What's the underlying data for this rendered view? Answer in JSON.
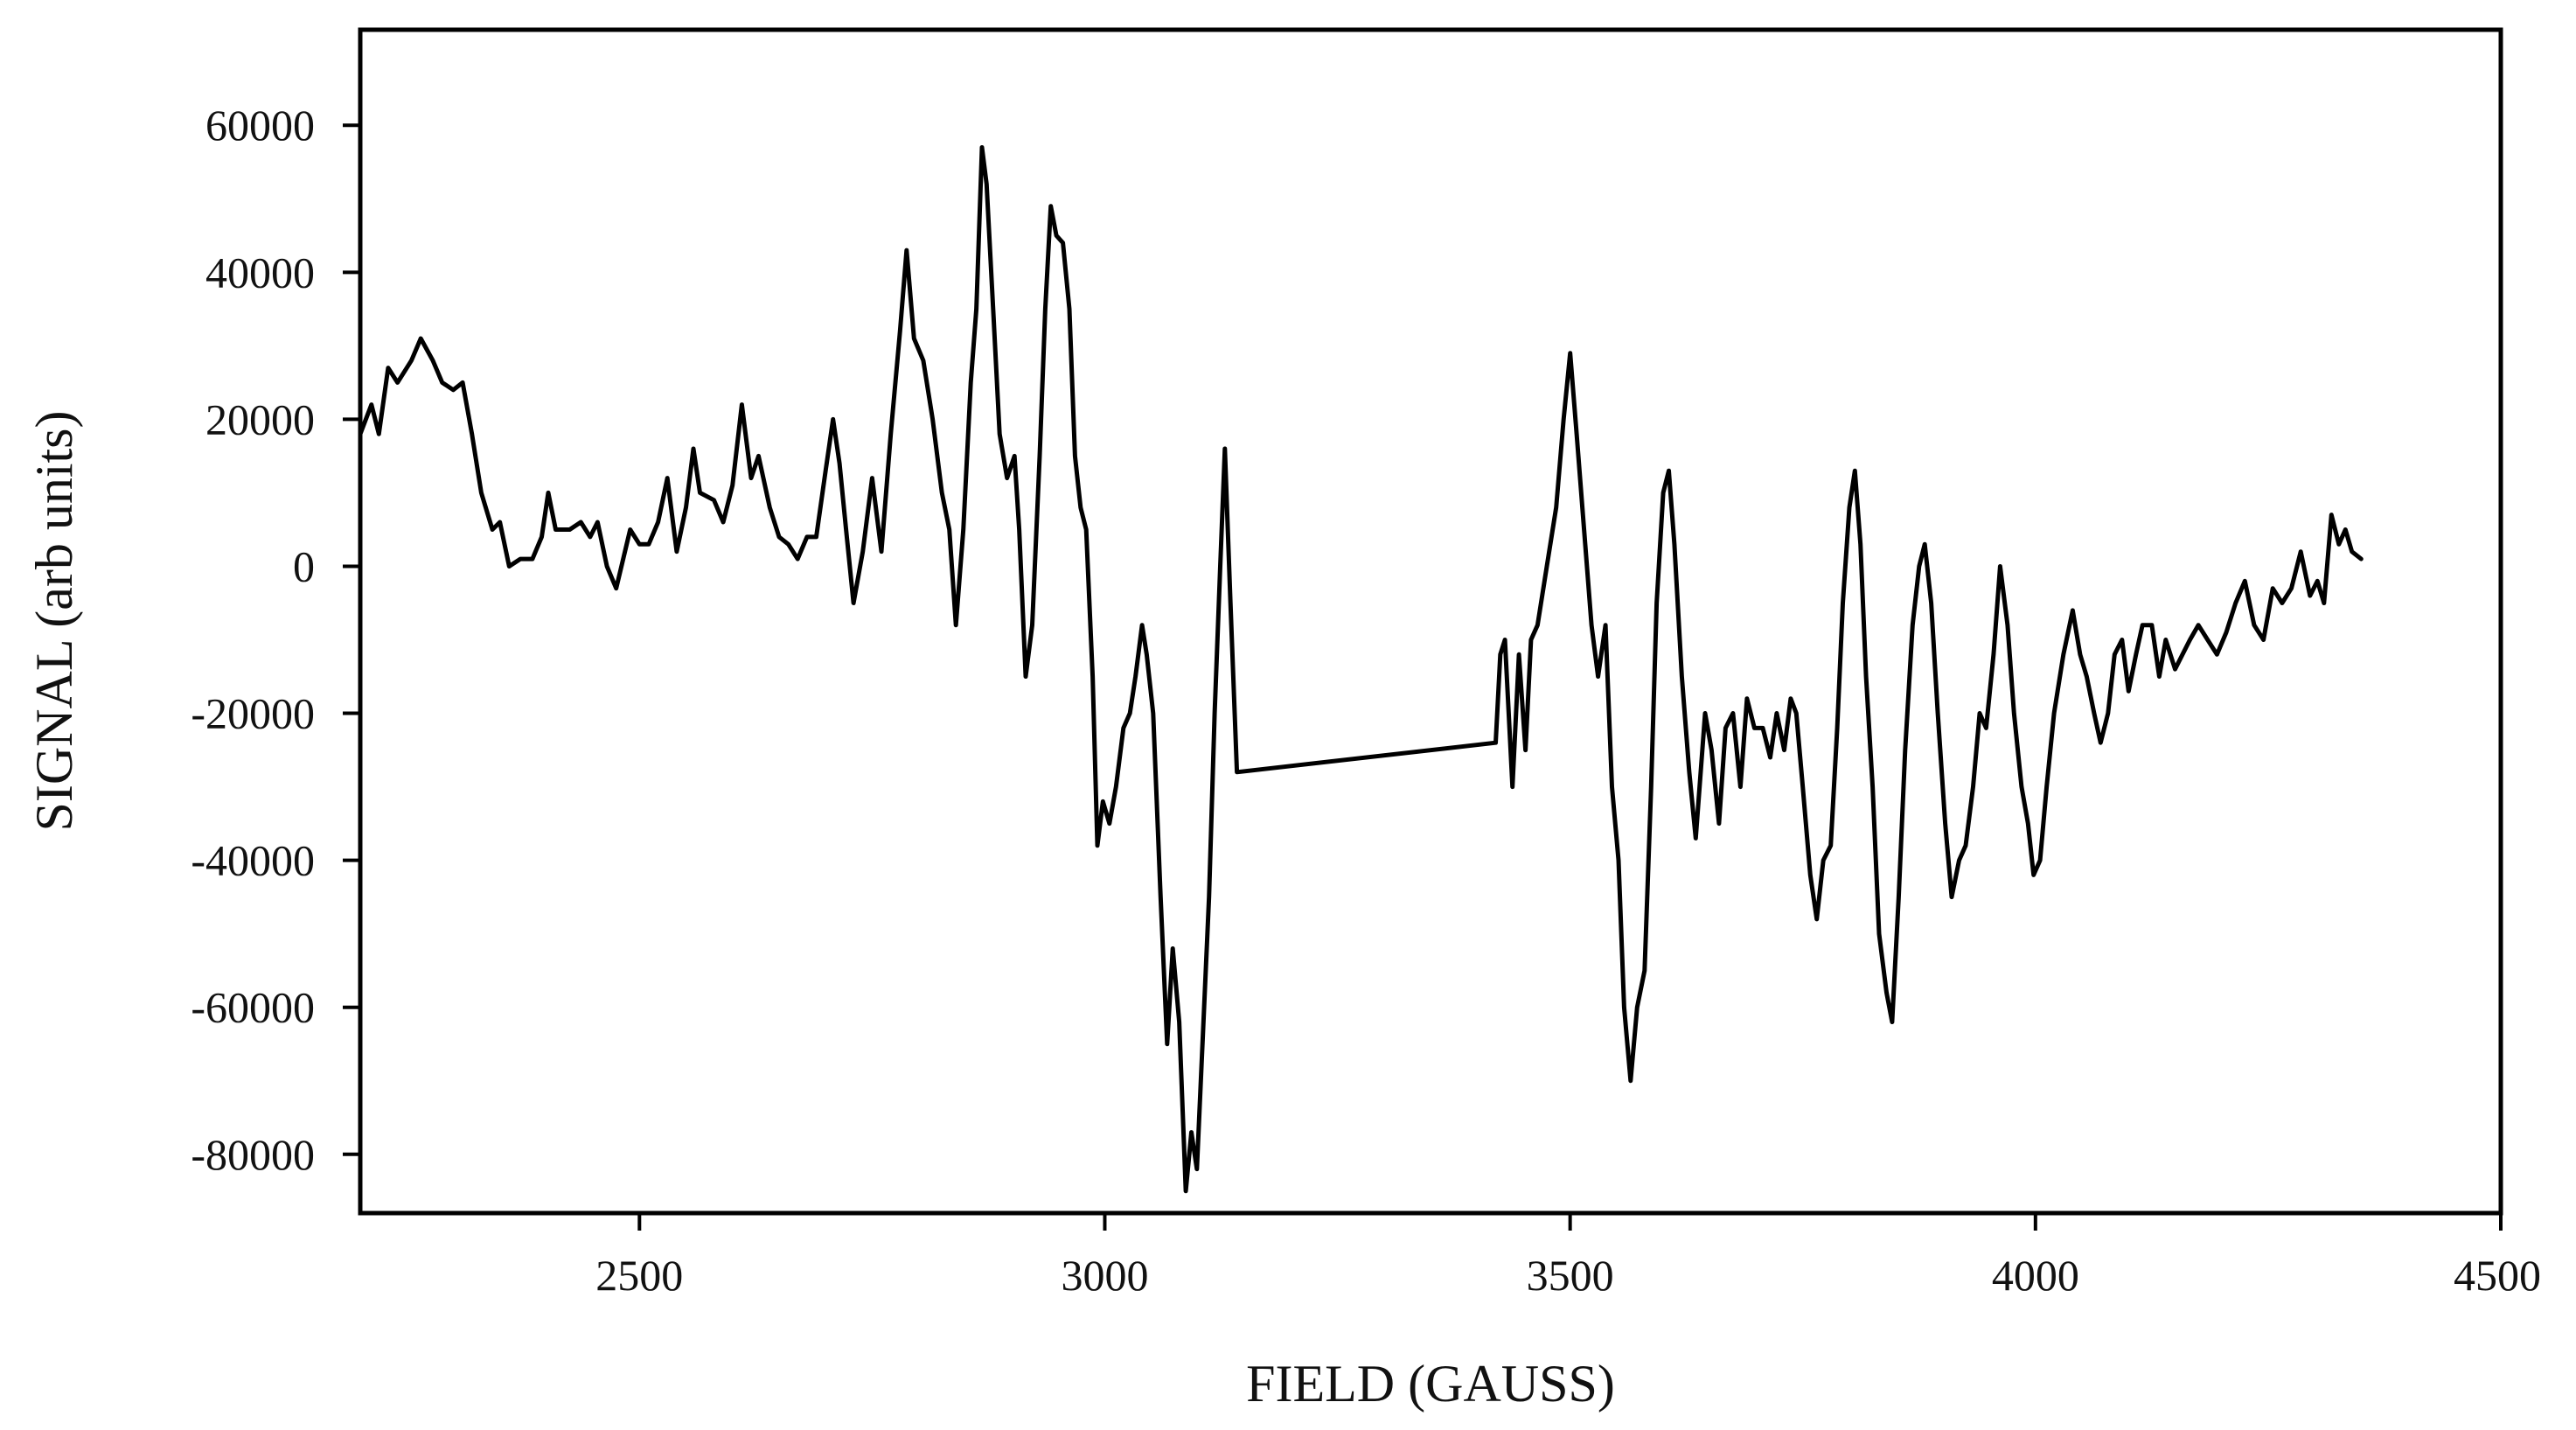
{
  "chart_data": {
    "type": "line",
    "title": "",
    "xlabel": "FIELD (GAUSS)",
    "ylabel": "SIGNAL (arb units)",
    "xlim": [
      2200,
      4500
    ],
    "ylim": [
      -88000,
      73000
    ],
    "x_ticks": [
      2500,
      3000,
      3500,
      4000,
      4500
    ],
    "y_ticks": [
      60000,
      40000,
      20000,
      0,
      -20000,
      -40000,
      -60000,
      -80000
    ],
    "x_tick_labels": [
      "2500",
      "3000",
      "3500",
      "4000",
      "4500"
    ],
    "y_tick_labels": [
      "60000",
      "40000",
      "20000",
      "0",
      "-20000",
      "-40000",
      "-60000",
      "-80000"
    ],
    "grid": false,
    "legend": "none",
    "series": [
      {
        "name": "signal",
        "color": "#000000",
        "points": [
          [
            2200,
            18000
          ],
          [
            2212,
            22000
          ],
          [
            2220,
            18000
          ],
          [
            2230,
            27000
          ],
          [
            2240,
            25000
          ],
          [
            2255,
            28000
          ],
          [
            2265,
            31000
          ],
          [
            2278,
            28000
          ],
          [
            2288,
            25000
          ],
          [
            2300,
            24000
          ],
          [
            2310,
            25000
          ],
          [
            2320,
            18000
          ],
          [
            2330,
            10000
          ],
          [
            2342,
            5000
          ],
          [
            2350,
            6000
          ],
          [
            2360,
            0
          ],
          [
            2372,
            1000
          ],
          [
            2385,
            1000
          ],
          [
            2395,
            4000
          ],
          [
            2402,
            10000
          ],
          [
            2410,
            5000
          ],
          [
            2425,
            5000
          ],
          [
            2437,
            6000
          ],
          [
            2447,
            4000
          ],
          [
            2455,
            6000
          ],
          [
            2465,
            0
          ],
          [
            2475,
            -3000
          ],
          [
            2490,
            5000
          ],
          [
            2500,
            3000
          ],
          [
            2510,
            3000
          ],
          [
            2520,
            6000
          ],
          [
            2530,
            12000
          ],
          [
            2540,
            2000
          ],
          [
            2550,
            8000
          ],
          [
            2558,
            16000
          ],
          [
            2565,
            10000
          ],
          [
            2580,
            9000
          ],
          [
            2590,
            6000
          ],
          [
            2600,
            11000
          ],
          [
            2610,
            22000
          ],
          [
            2620,
            12000
          ],
          [
            2628,
            15000
          ],
          [
            2640,
            8000
          ],
          [
            2650,
            4000
          ],
          [
            2660,
            3000
          ],
          [
            2670,
            1000
          ],
          [
            2680,
            4000
          ],
          [
            2690,
            4000
          ],
          [
            2700,
            13000
          ],
          [
            2708,
            20000
          ],
          [
            2715,
            14000
          ],
          [
            2722,
            5000
          ],
          [
            2730,
            -5000
          ],
          [
            2740,
            2000
          ],
          [
            2750,
            12000
          ],
          [
            2760,
            2000
          ],
          [
            2770,
            18000
          ],
          [
            2780,
            32000
          ],
          [
            2787,
            43000
          ],
          [
            2795,
            31000
          ],
          [
            2805,
            28000
          ],
          [
            2815,
            20000
          ],
          [
            2825,
            10000
          ],
          [
            2833,
            5000
          ],
          [
            2840,
            -8000
          ],
          [
            2848,
            5000
          ],
          [
            2856,
            25000
          ],
          [
            2862,
            35000
          ],
          [
            2868,
            57000
          ],
          [
            2873,
            52000
          ],
          [
            2880,
            35000
          ],
          [
            2887,
            18000
          ],
          [
            2895,
            12000
          ],
          [
            2903,
            15000
          ],
          [
            2908,
            5000
          ],
          [
            2915,
            -15000
          ],
          [
            2922,
            -8000
          ],
          [
            2930,
            15000
          ],
          [
            2936,
            35000
          ],
          [
            2942,
            49000
          ],
          [
            2948,
            45000
          ],
          [
            2955,
            44000
          ],
          [
            2962,
            35000
          ],
          [
            2968,
            15000
          ],
          [
            2974,
            8000
          ],
          [
            2980,
            5000
          ],
          [
            2987,
            -15000
          ],
          [
            2992,
            -38000
          ],
          [
            2998,
            -32000
          ],
          [
            3005,
            -35000
          ],
          [
            3012,
            -30000
          ],
          [
            3020,
            -22000
          ],
          [
            3027,
            -20000
          ],
          [
            3033,
            -15000
          ],
          [
            3040,
            -8000
          ],
          [
            3045,
            -12000
          ],
          [
            3052,
            -20000
          ],
          [
            3060,
            -45000
          ],
          [
            3067,
            -65000
          ],
          [
            3073,
            -52000
          ],
          [
            3080,
            -62000
          ],
          [
            3087,
            -85000
          ],
          [
            3093,
            -77000
          ],
          [
            3099,
            -82000
          ],
          [
            3105,
            -65000
          ],
          [
            3112,
            -45000
          ],
          [
            3118,
            -20000
          ],
          [
            3124,
            0
          ],
          [
            3129,
            16000
          ],
          [
            3135,
            -5000
          ],
          [
            3142,
            -28000
          ],
          [
            3420,
            -24000
          ],
          [
            3425,
            -12000
          ],
          [
            3430,
            -10000
          ],
          [
            3438,
            -30000
          ],
          [
            3445,
            -12000
          ],
          [
            3452,
            -25000
          ],
          [
            3458,
            -10000
          ],
          [
            3465,
            -8000
          ],
          [
            3475,
            0
          ],
          [
            3485,
            8000
          ],
          [
            3493,
            20000
          ],
          [
            3500,
            29000
          ],
          [
            3507,
            18000
          ],
          [
            3515,
            5000
          ],
          [
            3523,
            -8000
          ],
          [
            3530,
            -15000
          ],
          [
            3538,
            -8000
          ],
          [
            3545,
            -30000
          ],
          [
            3552,
            -40000
          ],
          [
            3558,
            -60000
          ],
          [
            3565,
            -70000
          ],
          [
            3572,
            -60000
          ],
          [
            3580,
            -55000
          ],
          [
            3587,
            -30000
          ],
          [
            3593,
            -5000
          ],
          [
            3600,
            10000
          ],
          [
            3606,
            13000
          ],
          [
            3612,
            3000
          ],
          [
            3620,
            -15000
          ],
          [
            3628,
            -28000
          ],
          [
            3635,
            -37000
          ],
          [
            3645,
            -20000
          ],
          [
            3652,
            -25000
          ],
          [
            3660,
            -35000
          ],
          [
            3667,
            -22000
          ],
          [
            3675,
            -20000
          ],
          [
            3683,
            -30000
          ],
          [
            3690,
            -18000
          ],
          [
            3698,
            -22000
          ],
          [
            3707,
            -22000
          ],
          [
            3715,
            -26000
          ],
          [
            3722,
            -20000
          ],
          [
            3730,
            -25000
          ],
          [
            3737,
            -18000
          ],
          [
            3743,
            -20000
          ],
          [
            3750,
            -30000
          ],
          [
            3758,
            -42000
          ],
          [
            3765,
            -48000
          ],
          [
            3772,
            -40000
          ],
          [
            3780,
            -38000
          ],
          [
            3787,
            -22000
          ],
          [
            3793,
            -5000
          ],
          [
            3800,
            8000
          ],
          [
            3806,
            13000
          ],
          [
            3812,
            3000
          ],
          [
            3818,
            -15000
          ],
          [
            3825,
            -30000
          ],
          [
            3832,
            -50000
          ],
          [
            3840,
            -58000
          ],
          [
            3846,
            -62000
          ],
          [
            3853,
            -45000
          ],
          [
            3860,
            -25000
          ],
          [
            3868,
            -8000
          ],
          [
            3875,
            0
          ],
          [
            3881,
            3000
          ],
          [
            3888,
            -5000
          ],
          [
            3895,
            -20000
          ],
          [
            3903,
            -35000
          ],
          [
            3910,
            -45000
          ],
          [
            3918,
            -40000
          ],
          [
            3925,
            -38000
          ],
          [
            3933,
            -30000
          ],
          [
            3940,
            -20000
          ],
          [
            3947,
            -22000
          ],
          [
            3955,
            -12000
          ],
          [
            3962,
            0
          ],
          [
            3970,
            -8000
          ],
          [
            3977,
            -20000
          ],
          [
            3985,
            -30000
          ],
          [
            3992,
            -35000
          ],
          [
            3998,
            -42000
          ],
          [
            4005,
            -40000
          ],
          [
            4012,
            -30000
          ],
          [
            4020,
            -20000
          ],
          [
            4030,
            -12000
          ],
          [
            4040,
            -6000
          ],
          [
            4048,
            -12000
          ],
          [
            4055,
            -15000
          ],
          [
            4063,
            -20000
          ],
          [
            4070,
            -24000
          ],
          [
            4078,
            -20000
          ],
          [
            4085,
            -12000
          ],
          [
            4093,
            -10000
          ],
          [
            4100,
            -17000
          ],
          [
            4108,
            -12000
          ],
          [
            4115,
            -8000
          ],
          [
            4125,
            -8000
          ],
          [
            4133,
            -15000
          ],
          [
            4140,
            -10000
          ],
          [
            4150,
            -14000
          ],
          [
            4158,
            -12000
          ],
          [
            4166,
            -10000
          ],
          [
            4175,
            -8000
          ],
          [
            4185,
            -10000
          ],
          [
            4195,
            -12000
          ],
          [
            4205,
            -9000
          ],
          [
            4215,
            -5000
          ],
          [
            4225,
            -2000
          ],
          [
            4235,
            -8000
          ],
          [
            4245,
            -10000
          ],
          [
            4255,
            -3000
          ],
          [
            4265,
            -5000
          ],
          [
            4275,
            -3000
          ],
          [
            4285,
            2000
          ],
          [
            4295,
            -4000
          ],
          [
            4303,
            -2000
          ],
          [
            4310,
            -5000
          ],
          [
            4318,
            7000
          ],
          [
            4326,
            3000
          ],
          [
            4333,
            5000
          ],
          [
            4340,
            2000
          ],
          [
            4350,
            1000
          ]
        ]
      }
    ]
  }
}
